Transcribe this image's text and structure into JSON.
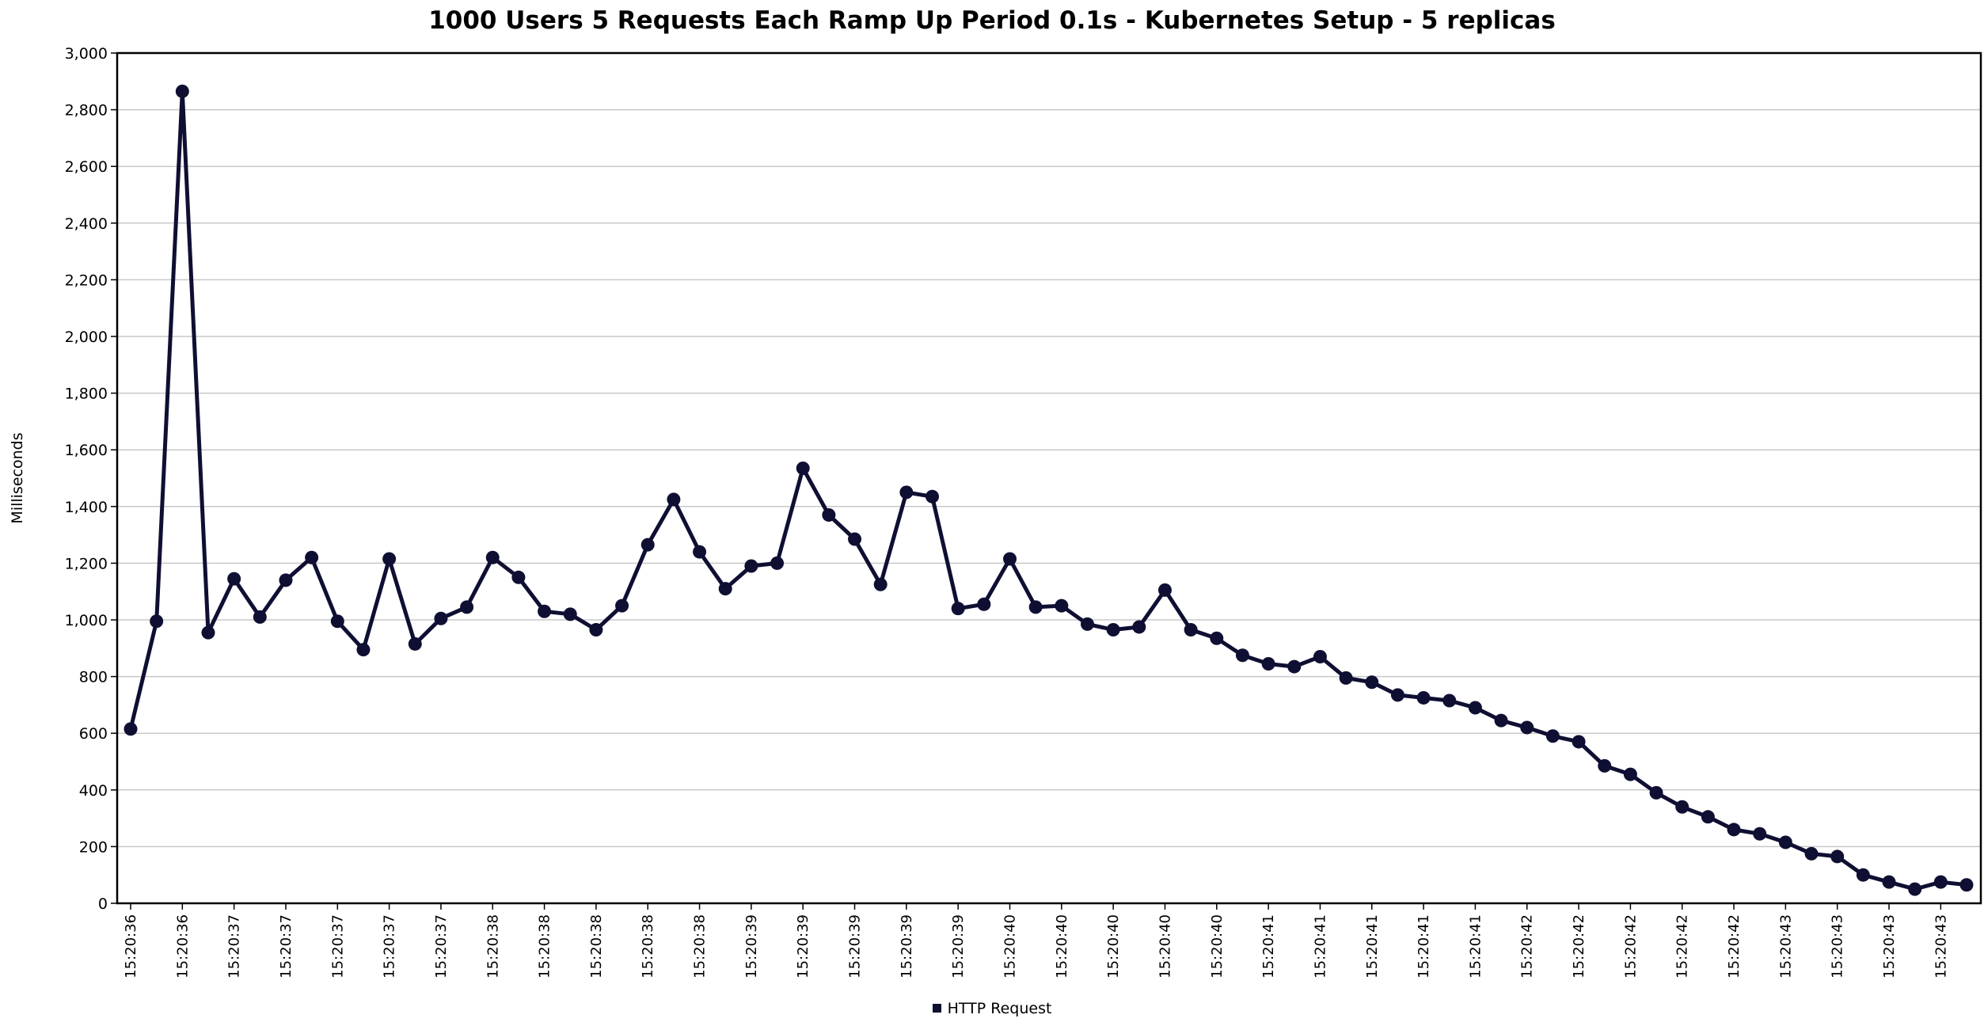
{
  "chart_data": {
    "type": "line",
    "title": "1000 Users 5 Requests Each Ramp Up Period 0.1s - Kubernetes Setup - 5 replicas",
    "ylabel": "Milliseconds",
    "xlabel": "",
    "ylim": [
      0,
      3000
    ],
    "yticks": [
      "0",
      "200",
      "400",
      "600",
      "800",
      "1,000",
      "1,200",
      "1,400",
      "1,600",
      "1,800",
      "2,000",
      "2,200",
      "2,400",
      "2,600",
      "2,800",
      "3,000"
    ],
    "xticks": [
      "15:20:36",
      "15:20:36",
      "15:20:37",
      "15:20:37",
      "15:20:37",
      "15:20:37",
      "15:20:37",
      "15:20:38",
      "15:20:38",
      "15:20:38",
      "15:20:38",
      "15:20:38",
      "15:20:39",
      "15:20:39",
      "15:20:39",
      "15:20:39",
      "15:20:39",
      "15:20:40",
      "15:20:40",
      "15:20:40",
      "15:20:40",
      "15:20:40",
      "15:20:41",
      "15:20:41",
      "15:20:41",
      "15:20:41",
      "15:20:41",
      "15:20:42",
      "15:20:42",
      "15:20:42",
      "15:20:42",
      "15:20:42",
      "15:20:43",
      "15:20:43",
      "15:20:43",
      "15:20:43"
    ],
    "grid": true,
    "legend_position": "bottom",
    "color": "#0f0f33",
    "series": [
      {
        "name": "HTTP Request",
        "values": [
          615,
          995,
          2865,
          955,
          1145,
          1010,
          1140,
          1220,
          995,
          895,
          1215,
          915,
          1005,
          1045,
          1220,
          1150,
          1030,
          1020,
          965,
          1050,
          1265,
          1425,
          1240,
          1110,
          1190,
          1200,
          1535,
          1370,
          1285,
          1125,
          1450,
          1435,
          1040,
          1055,
          1215,
          1045,
          1050,
          985,
          965,
          975,
          1105,
          965,
          935,
          875,
          845,
          835,
          870,
          795,
          780,
          735,
          725,
          715,
          690,
          645,
          620,
          590,
          570,
          485,
          455,
          390,
          340,
          305,
          260,
          245,
          215,
          175,
          165,
          100,
          75,
          50,
          75,
          65
        ]
      }
    ]
  }
}
